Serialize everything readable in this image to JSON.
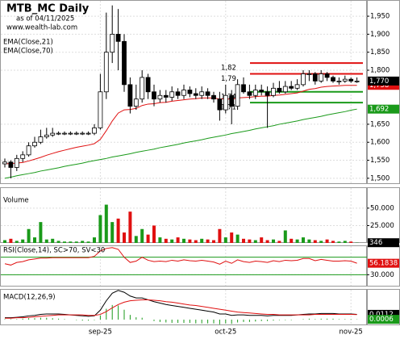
{
  "chart_data": [
    {
      "type": "candlestick",
      "title": "MTB_MC Daily",
      "subtitle": "as of 04/11/2025",
      "source": "www.wealth-lab.com",
      "categories": [
        null,
        null,
        null,
        null,
        null,
        null,
        null,
        null,
        null,
        null,
        null,
        null,
        null,
        null,
        null,
        null,
        "sep-25",
        null,
        null,
        null,
        null,
        null,
        null,
        null,
        null,
        null,
        null,
        null,
        null,
        null,
        null,
        null,
        null,
        null,
        null,
        null,
        null,
        "oct-25",
        null,
        null,
        null,
        null,
        null,
        null,
        null,
        null,
        null,
        null,
        null,
        null,
        null,
        null,
        null,
        null,
        null,
        null,
        null,
        null,
        "nov-25",
        null
      ],
      "open": [
        1.54,
        1.545,
        1.53,
        1.555,
        1.565,
        1.59,
        1.6,
        1.615,
        1.62,
        1.625,
        1.625,
        1.625,
        1.625,
        1.625,
        1.625,
        1.625,
        1.64,
        1.74,
        1.85,
        1.9,
        1.88,
        1.76,
        1.7,
        1.72,
        1.78,
        1.74,
        1.72,
        1.73,
        1.725,
        1.74,
        1.73,
        1.745,
        1.735,
        1.73,
        1.74,
        1.73,
        1.72,
        1.69,
        1.73,
        1.7,
        1.76,
        1.74,
        1.73,
        1.745,
        1.74,
        1.73,
        1.75,
        1.74,
        1.755,
        1.75,
        1.76,
        1.79,
        1.79,
        1.77,
        1.79,
        1.78,
        1.77,
        1.77,
        1.775,
        1.77
      ],
      "high": [
        1.555,
        1.55,
        1.565,
        1.575,
        1.6,
        1.615,
        1.635,
        1.64,
        1.64,
        1.63,
        1.63,
        1.63,
        1.63,
        1.63,
        1.63,
        1.65,
        1.79,
        1.96,
        1.98,
        1.97,
        1.9,
        1.78,
        1.76,
        1.8,
        1.79,
        1.76,
        1.745,
        1.745,
        1.755,
        1.75,
        1.76,
        1.755,
        1.75,
        1.755,
        1.75,
        1.74,
        1.74,
        1.76,
        1.745,
        1.775,
        1.78,
        1.76,
        1.76,
        1.76,
        1.755,
        1.765,
        1.77,
        1.77,
        1.77,
        1.775,
        1.8,
        1.8,
        1.795,
        1.8,
        1.795,
        1.785,
        1.78,
        1.785,
        1.78,
        1.78
      ],
      "low": [
        1.53,
        1.5,
        1.52,
        1.545,
        1.56,
        1.585,
        1.595,
        1.61,
        1.615,
        1.62,
        1.62,
        1.62,
        1.62,
        1.62,
        1.62,
        1.62,
        1.635,
        1.72,
        1.82,
        1.8,
        1.74,
        1.68,
        1.69,
        1.71,
        1.72,
        1.7,
        1.71,
        1.71,
        1.715,
        1.72,
        1.72,
        1.725,
        1.72,
        1.72,
        1.72,
        1.71,
        1.66,
        1.68,
        1.65,
        1.69,
        1.735,
        1.72,
        1.72,
        1.73,
        1.64,
        1.725,
        1.735,
        1.735,
        1.745,
        1.745,
        1.755,
        1.77,
        1.76,
        1.765,
        1.77,
        1.765,
        1.76,
        1.765,
        1.765,
        1.765
      ],
      "close": [
        1.545,
        1.53,
        1.555,
        1.565,
        1.59,
        1.6,
        1.615,
        1.62,
        1.625,
        1.625,
        1.625,
        1.625,
        1.625,
        1.625,
        1.625,
        1.64,
        1.74,
        1.85,
        1.9,
        1.88,
        1.76,
        1.7,
        1.72,
        1.78,
        1.74,
        1.72,
        1.73,
        1.725,
        1.74,
        1.73,
        1.745,
        1.735,
        1.73,
        1.74,
        1.73,
        1.72,
        1.69,
        1.73,
        1.7,
        1.76,
        1.74,
        1.73,
        1.745,
        1.74,
        1.73,
        1.75,
        1.74,
        1.755,
        1.75,
        1.76,
        1.79,
        1.79,
        1.77,
        1.79,
        1.78,
        1.77,
        1.77,
        1.775,
        1.77,
        1.77
      ],
      "series": [
        {
          "name": "EMA(Close,21)",
          "color": "#e01010",
          "values": [
            1.54,
            1.541,
            1.542,
            1.544,
            1.548,
            1.553,
            1.558,
            1.564,
            1.569,
            1.574,
            1.578,
            1.582,
            1.586,
            1.589,
            1.592,
            1.596,
            1.608,
            1.632,
            1.659,
            1.681,
            1.69,
            1.691,
            1.694,
            1.702,
            1.706,
            1.707,
            1.71,
            1.711,
            1.714,
            1.716,
            1.718,
            1.72,
            1.721,
            1.723,
            1.723,
            1.723,
            1.72,
            1.721,
            1.719,
            1.723,
            1.724,
            1.725,
            1.727,
            1.728,
            1.728,
            1.73,
            1.731,
            1.733,
            1.735,
            1.737,
            1.742,
            1.747,
            1.749,
            1.753,
            1.755,
            1.756,
            1.757,
            1.758,
            1.758,
            1.758
          ]
        },
        {
          "name": "EMA(Close,70)",
          "color": "#1a9a1a",
          "values": [
            1.5,
            1.503,
            1.507,
            1.51,
            1.513,
            1.516,
            1.52,
            1.523,
            1.526,
            1.529,
            1.533,
            1.536,
            1.539,
            1.542,
            1.546,
            1.549,
            1.552,
            1.555,
            1.559,
            1.562,
            1.565,
            1.568,
            1.572,
            1.575,
            1.578,
            1.581,
            1.585,
            1.588,
            1.591,
            1.594,
            1.598,
            1.601,
            1.604,
            1.607,
            1.611,
            1.614,
            1.617,
            1.62,
            1.624,
            1.627,
            1.63,
            1.633,
            1.637,
            1.64,
            1.643,
            1.646,
            1.65,
            1.653,
            1.656,
            1.659,
            1.663,
            1.666,
            1.669,
            1.672,
            1.676,
            1.679,
            1.682,
            1.685,
            1.689,
            1.692
          ]
        }
      ],
      "levels": [
        {
          "value": 1.82,
          "label": "1,82",
          "color": "#e01010"
        },
        {
          "value": 1.79,
          "label": "1,79",
          "color": "#e01010"
        },
        {
          "value": 1.74,
          "label": "1,74",
          "color": "#1a9a1a"
        },
        {
          "value": 1.71,
          "label": "1,71",
          "color": "#1a9a1a"
        }
      ],
      "last_labels": [
        {
          "value": 1.758,
          "label": "1,758",
          "color": "#e01010"
        },
        {
          "value": 1.77,
          "label": "1,770",
          "color": "#000000"
        },
        {
          "value": 1.692,
          "label": "1,692",
          "color": "#1a9a1a"
        }
      ],
      "ylim": [
        1.484,
        1.995
      ],
      "yticks": [
        {
          "value": 1.95,
          "label": "1,950"
        },
        {
          "value": 1.9,
          "label": "1,900"
        },
        {
          "value": 1.85,
          "label": "1,850"
        },
        {
          "value": 1.8,
          "label": "1,800"
        },
        {
          "value": 1.65,
          "label": "1,650"
        },
        {
          "value": 1.6,
          "label": "1,600"
        },
        {
          "value": 1.55,
          "label": "1,550"
        },
        {
          "value": 1.5,
          "label": "1,500"
        }
      ],
      "grid": true
    },
    {
      "type": "bar",
      "title": "Volume",
      "up_color": "#1a9a1a",
      "down_color": "#e01010",
      "values": [
        4000,
        6000,
        3000,
        5000,
        20000,
        8000,
        30000,
        5000,
        6000,
        3000,
        2000,
        2000,
        2000,
        3000,
        2000,
        8000,
        40000,
        55000,
        30000,
        35000,
        15000,
        45000,
        10000,
        20000,
        12000,
        25000,
        8000,
        6000,
        5000,
        8000,
        6000,
        5000,
        4000,
        6000,
        5000,
        4000,
        20000,
        8000,
        15000,
        12000,
        6000,
        5000,
        4000,
        8000,
        4000,
        5000,
        3000,
        18000,
        6000,
        5000,
        8000,
        5000,
        4000,
        3000,
        5000,
        3000,
        2000,
        3000,
        2000,
        346
      ],
      "last_label": "346",
      "ylim": [
        0,
        80000
      ],
      "yticks": [
        {
          "value": 50000,
          "label": "50.000"
        },
        {
          "value": 25000,
          "label": "25.000"
        }
      ],
      "grid": true
    },
    {
      "type": "line",
      "title": "RSI(Close,14), SC>70, SV<30",
      "color": "#e01010",
      "band_color": "#1a9a1a",
      "bands": [
        70,
        30
      ],
      "values": [
        55,
        52,
        58,
        60,
        64,
        66,
        68,
        68,
        69,
        69,
        69,
        69,
        69,
        69,
        69,
        72,
        84,
        90,
        92,
        88,
        70,
        58,
        61,
        70,
        63,
        60,
        61,
        60,
        63,
        61,
        64,
        62,
        61,
        63,
        61,
        59,
        54,
        61,
        56,
        64,
        60,
        58,
        61,
        60,
        58,
        62,
        60,
        63,
        62,
        63,
        67,
        67,
        62,
        65,
        63,
        61,
        61,
        62,
        61,
        56.1838
      ],
      "last_label": "56.1838",
      "ylim": [
        3,
        97
      ],
      "yticks": [
        {
          "value": 30,
          "label": "30.000"
        }
      ],
      "grid": true
    },
    {
      "type": "macd",
      "title": "MACD(12,26,9)",
      "hist_color": "#1a9a1a",
      "series": [
        {
          "color": "#000000",
          "values": [
            0.004,
            0.004,
            0.005,
            0.006,
            0.008,
            0.009,
            0.011,
            0.012,
            0.012,
            0.012,
            0.011,
            0.01,
            0.009,
            0.008,
            0.007,
            0.008,
            0.02,
            0.04,
            0.056,
            0.062,
            0.058,
            0.05,
            0.046,
            0.046,
            0.042,
            0.038,
            0.035,
            0.032,
            0.03,
            0.028,
            0.026,
            0.024,
            0.022,
            0.02,
            0.018,
            0.016,
            0.012,
            0.012,
            0.009,
            0.01,
            0.01,
            0.009,
            0.009,
            0.009,
            0.008,
            0.009,
            0.009,
            0.009,
            0.009,
            0.01,
            0.011,
            0.012,
            0.012,
            0.013,
            0.013,
            0.013,
            0.012,
            0.012,
            0.012,
            0.0112
          ]
        },
        {
          "color": "#e01010",
          "values": [
            0.003,
            0.003,
            0.004,
            0.004,
            0.005,
            0.006,
            0.007,
            0.008,
            0.009,
            0.01,
            0.01,
            0.01,
            0.01,
            0.01,
            0.009,
            0.009,
            0.011,
            0.017,
            0.025,
            0.032,
            0.037,
            0.04,
            0.041,
            0.042,
            0.042,
            0.041,
            0.04,
            0.038,
            0.037,
            0.035,
            0.033,
            0.031,
            0.03,
            0.028,
            0.026,
            0.024,
            0.022,
            0.02,
            0.018,
            0.016,
            0.015,
            0.014,
            0.013,
            0.012,
            0.011,
            0.011,
            0.01,
            0.01,
            0.01,
            0.01,
            0.01,
            0.01,
            0.011,
            0.011,
            0.011,
            0.011,
            0.011,
            0.011,
            0.011,
            0.0106
          ]
        }
      ],
      "histogram": [
        0.001,
        0.001,
        0.001,
        0.002,
        0.003,
        0.003,
        0.004,
        0.004,
        0.003,
        0.002,
        0.001,
        0,
        -0.001,
        -0.002,
        -0.002,
        -0.001,
        0.009,
        0.023,
        0.031,
        0.03,
        0.021,
        0.01,
        0.005,
        0.004,
        0,
        -0.003,
        -0.005,
        -0.006,
        -0.007,
        -0.007,
        -0.007,
        -0.007,
        -0.008,
        -0.008,
        -0.008,
        -0.008,
        -0.01,
        -0.008,
        -0.009,
        -0.006,
        -0.005,
        -0.005,
        -0.004,
        -0.003,
        -0.003,
        -0.002,
        -0.001,
        -0.001,
        -0.001,
        0,
        0.001,
        0.002,
        0.001,
        0.002,
        0.002,
        0.002,
        0.001,
        0.001,
        0.001,
        0.0006
      ],
      "last_labels": [
        {
          "value": 0.0112,
          "label": "0.0112",
          "color": "#000000"
        },
        {
          "value": 0.0006,
          "label": "0.0006",
          "color": "#1a9a1a"
        }
      ],
      "ylim": [
        -0.012,
        0.065
      ],
      "yticks": [],
      "grid": true
    }
  ]
}
